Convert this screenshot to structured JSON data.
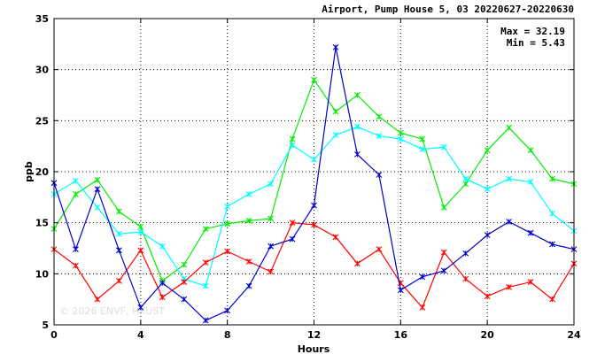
{
  "chart_data": {
    "type": "line",
    "title": "Airport, Pump House 5, 03 20220627-20220630",
    "xlabel": "Hours",
    "ylabel": "ppb",
    "xlim": [
      0,
      24
    ],
    "ylim": [
      5,
      35
    ],
    "xticks": [
      0,
      4,
      8,
      12,
      16,
      20,
      24
    ],
    "yticks": [
      5,
      10,
      15,
      20,
      25,
      30,
      35
    ],
    "grid": true,
    "stats": {
      "max_label": "Max = 32.19",
      "min_label": "Min =  5.43"
    },
    "watermark": "© 2026  ENVF, HKUST",
    "x": [
      0,
      1,
      2,
      3,
      4,
      5,
      6,
      7,
      8,
      9,
      10,
      11,
      12,
      13,
      14,
      15,
      16,
      17,
      18,
      19,
      20,
      21,
      22,
      23,
      24
    ],
    "series": [
      {
        "color": "#00ee00",
        "values": [
          14.4,
          17.8,
          19.2,
          16.1,
          14.6,
          9.3,
          10.9,
          14.4,
          14.9,
          15.2,
          15.4,
          23.2,
          29.0,
          25.9,
          27.5,
          25.4,
          23.8,
          23.2,
          16.5,
          18.8,
          22.1,
          24.3,
          22.1,
          19.3,
          18.8
        ]
      },
      {
        "color": "#00ffff",
        "values": [
          17.8,
          19.1,
          16.5,
          13.9,
          14.1,
          12.7,
          9.5,
          8.8,
          16.6,
          17.8,
          18.8,
          22.6,
          21.2,
          23.6,
          24.4,
          23.5,
          23.2,
          22.2,
          22.4,
          19.3,
          18.3,
          19.3,
          19.0,
          15.9,
          14.2
        ]
      },
      {
        "color": "#ff0000",
        "values": [
          12.4,
          10.8,
          7.5,
          9.3,
          12.3,
          7.7,
          9.2,
          11.1,
          12.2,
          11.2,
          10.2,
          15.0,
          14.8,
          13.6,
          11.0,
          12.4,
          9.1,
          6.7,
          12.1,
          9.5,
          7.8,
          8.7,
          9.2,
          7.5,
          11.0
        ]
      },
      {
        "color": "#0000cc",
        "values": [
          18.9,
          12.4,
          18.3,
          12.3,
          6.7,
          9.1,
          7.5,
          5.43,
          6.4,
          8.8,
          12.7,
          13.4,
          16.7,
          32.19,
          21.7,
          19.7,
          8.4,
          9.7,
          10.3,
          12.0,
          13.8,
          15.1,
          14.0,
          12.9,
          12.4
        ]
      }
    ]
  }
}
